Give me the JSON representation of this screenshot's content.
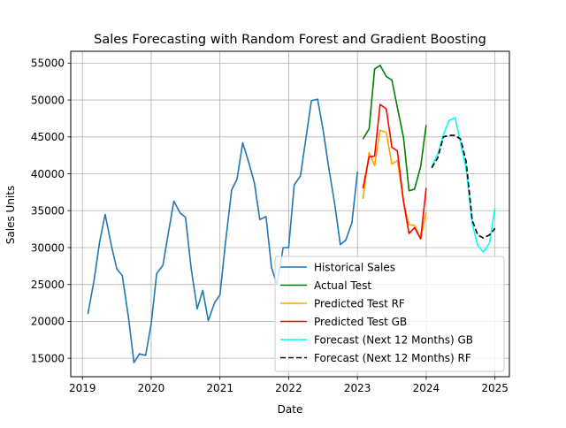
{
  "chart_data": {
    "type": "line",
    "title": "Sales Forecasting with Random Forest and Gradient Boosting",
    "xlabel": "Date",
    "ylabel": "Sales Units",
    "xlim": [
      2018.83,
      2025.21
    ],
    "ylim": [
      12500,
      56600
    ],
    "x_ticks": [
      2019,
      2020,
      2021,
      2022,
      2023,
      2024,
      2025
    ],
    "x_tick_labels": [
      "2019",
      "2020",
      "2021",
      "2022",
      "2023",
      "2024",
      "2025"
    ],
    "y_ticks": [
      15000,
      20000,
      25000,
      30000,
      35000,
      40000,
      45000,
      50000,
      55000
    ],
    "y_tick_labels": [
      "15000",
      "20000",
      "25000",
      "30000",
      "35000",
      "40000",
      "45000",
      "50000",
      "55000"
    ],
    "grid": true,
    "legend_position": "lower right",
    "series": [
      {
        "name": "Historical Sales",
        "color": "#1f77b4",
        "dash": "solid",
        "x": [
          2019.08,
          2019.17,
          2019.25,
          2019.33,
          2019.42,
          2019.5,
          2019.58,
          2019.67,
          2019.75,
          2019.83,
          2019.92,
          2020.0,
          2020.08,
          2020.17,
          2020.25,
          2020.33,
          2020.42,
          2020.5,
          2020.58,
          2020.67,
          2020.75,
          2020.83,
          2020.92,
          2021.0,
          2021.08,
          2021.17,
          2021.25,
          2021.33,
          2021.42,
          2021.5,
          2021.58,
          2021.67,
          2021.75,
          2021.83,
          2021.92,
          2022.0,
          2022.08,
          2022.17,
          2022.25,
          2022.33,
          2022.42,
          2022.5,
          2022.58,
          2022.67,
          2022.75,
          2022.83,
          2022.92,
          2023.0
        ],
        "y": [
          21000,
          25600,
          30800,
          34500,
          30300,
          27100,
          26200,
          20500,
          14400,
          15600,
          15400,
          19700,
          26500,
          27600,
          32000,
          36300,
          34700,
          34100,
          27200,
          21700,
          24200,
          20100,
          22500,
          23600,
          30600,
          37800,
          39300,
          44200,
          41500,
          38800,
          33800,
          34200,
          27300,
          25000,
          30000,
          30000,
          38500,
          39700,
          44800,
          49900,
          50100,
          46000,
          41000,
          35900,
          30400,
          31000,
          33400,
          40300
        ]
      },
      {
        "name": "Actual Test",
        "color": "#008000",
        "dash": "solid",
        "x": [
          2023.08,
          2023.17,
          2023.25,
          2023.33,
          2023.42,
          2023.5,
          2023.58,
          2023.67,
          2023.75,
          2023.83,
          2023.92,
          2024.0
        ],
        "y": [
          44700,
          46100,
          54200,
          54700,
          53200,
          52700,
          49000,
          44900,
          37700,
          37900,
          41000,
          46600
        ]
      },
      {
        "name": "Predicted Test RF",
        "color": "#ffa500",
        "dash": "solid",
        "x": [
          2023.08,
          2023.17,
          2023.25,
          2023.33,
          2023.42,
          2023.5,
          2023.58,
          2023.67,
          2023.75,
          2023.83,
          2023.92,
          2024.0
        ],
        "y": [
          36600,
          42900,
          41100,
          45900,
          45600,
          41300,
          41800,
          36200,
          33100,
          33000,
          31200,
          34800
        ]
      },
      {
        "name": "Predicted Test GB",
        "color": "#ff0000",
        "dash": "solid",
        "x": [
          2023.08,
          2023.17,
          2023.25,
          2023.33,
          2023.42,
          2023.5,
          2023.58,
          2023.67,
          2023.75,
          2023.83,
          2023.92,
          2024.0
        ],
        "y": [
          38000,
          42300,
          42400,
          49400,
          48800,
          43600,
          43100,
          36200,
          31900,
          32700,
          31200,
          38100
        ]
      },
      {
        "name": "Forecast (Next 12 Months) GB",
        "color": "#00ffff",
        "dash": "solid",
        "x": [
          2024.08,
          2024.17,
          2024.25,
          2024.33,
          2024.42,
          2024.5,
          2024.58,
          2024.67,
          2024.75,
          2024.83,
          2024.92,
          2025.0
        ],
        "y": [
          41000,
          42700,
          45300,
          47200,
          47600,
          44200,
          40700,
          33200,
          30300,
          29400,
          30600,
          35400
        ]
      },
      {
        "name": "Forecast (Next 12 Months) RF",
        "color": "#000000",
        "dash": "dashed",
        "x": [
          2024.08,
          2024.17,
          2024.25,
          2024.33,
          2024.42,
          2024.5,
          2024.58,
          2024.67,
          2024.75,
          2024.83,
          2024.92,
          2025.0
        ],
        "y": [
          40800,
          42200,
          45000,
          45200,
          45200,
          44700,
          41700,
          33700,
          31700,
          31300,
          31700,
          32600
        ]
      }
    ]
  }
}
